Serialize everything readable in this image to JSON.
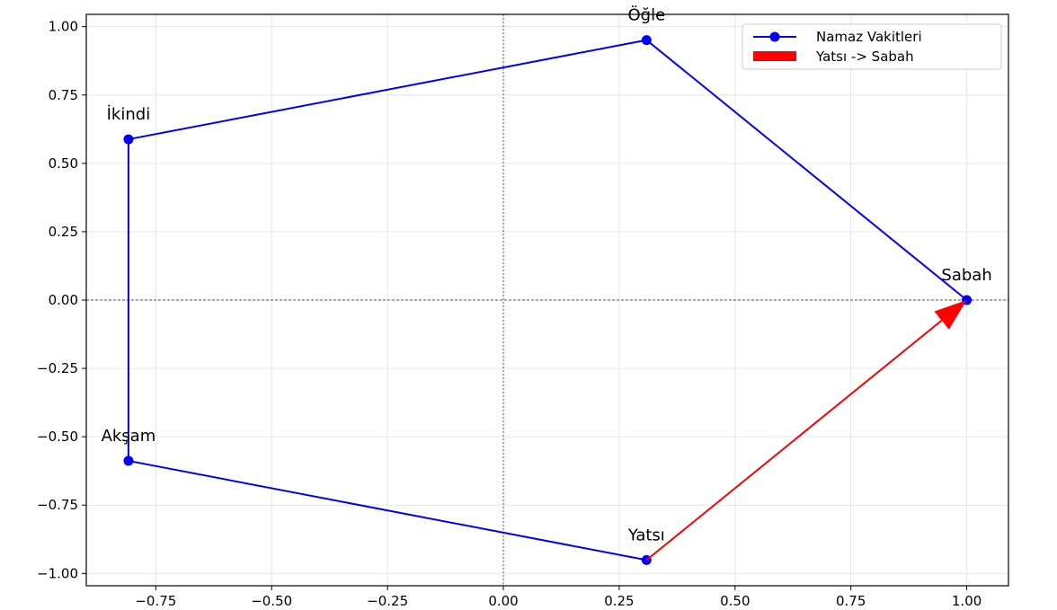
{
  "chart_data": {
    "type": "line",
    "title": "",
    "xlabel": "",
    "ylabel": "",
    "xlim": [
      -0.9,
      1.09
    ],
    "ylim": [
      -1.045,
      1.045
    ],
    "grid": true,
    "legend_position": "top-right",
    "x_ticks": [
      -0.75,
      -0.5,
      -0.25,
      0.0,
      0.25,
      0.5,
      0.75,
      1.0
    ],
    "y_ticks": [
      1.0,
      0.75,
      0.5,
      0.25,
      0.0,
      -0.25,
      -0.5,
      -0.75,
      -1.0
    ],
    "x_tick_labels": [
      "−0.75",
      "−0.50",
      "−0.25",
      "0.00",
      "0.25",
      "0.50",
      "0.75",
      "1.00"
    ],
    "y_tick_labels": [
      "1.00",
      "0.75",
      "0.50",
      "0.25",
      "0.00",
      "−0.25",
      "−0.50",
      "−0.75",
      "−1.00"
    ],
    "series": [
      {
        "name": "Namaz Vakitleri",
        "color": "#0000ff",
        "points": [
          {
            "label": "Sabah",
            "x": 1.0,
            "y": 0.0
          },
          {
            "label": "Öğle",
            "x": 0.309,
            "y": 0.951
          },
          {
            "label": "İkindi",
            "x": -0.809,
            "y": 0.588
          },
          {
            "label": "Akşam",
            "x": -0.809,
            "y": -0.588
          },
          {
            "label": "Yatsı",
            "x": 0.309,
            "y": -0.951
          }
        ]
      }
    ],
    "arrow": {
      "name": "Yatsı -> Sabah",
      "color": "#ff0000",
      "from": {
        "x": 0.309,
        "y": -0.951
      },
      "to": {
        "x": 1.0,
        "y": 0.0
      }
    }
  }
}
